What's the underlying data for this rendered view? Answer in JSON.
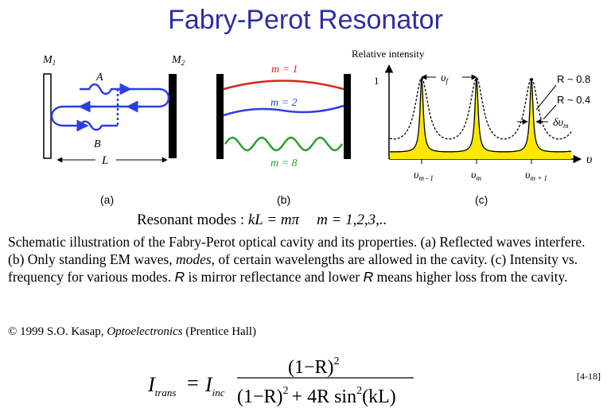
{
  "title": "Fabry-Perot Resonator",
  "panel_a": {
    "mirror1": "M",
    "mirror1_sub": "1",
    "mirror2": "M",
    "mirror2_sub": "2",
    "point_a": "A",
    "point_b": "B",
    "length": "L",
    "caption": "(a)"
  },
  "panel_b": {
    "mode1": "m = 1",
    "mode2": "m = 2",
    "mode8": "m = 8",
    "caption": "(b)",
    "colors": {
      "mode1": "#e02020",
      "mode2": "#2b3fe0",
      "mode8": "#2aa02a"
    }
  },
  "panel_c": {
    "ylabel": "Relative intensity",
    "ytick": "1",
    "nu_f_sym": "υ",
    "nu_f_sub": "f",
    "r_high": "R ~ 0.8",
    "r_low": "R ~ 0.4",
    "delta_nu_sym": "δυ",
    "delta_nu_sub": "m",
    "xaxis": "υ",
    "tick1_sym": "υ",
    "tick1_sub": "m - 1",
    "tick2_sym": "υ",
    "tick2_sub": "m",
    "tick3_sym": "υ",
    "tick3_sub": "m + 1",
    "caption": "(c)",
    "peak_color": "#ffe800"
  },
  "resonant": {
    "label": "Resonant modes : ",
    "cond": "kL = mπ",
    "values": "m = 1,2,3,.."
  },
  "description": {
    "p1": "Schematic illustration of the Fabry-Perot optical cavity and its properties. (a) Reflected waves interfere. (b) Only standing EM waves, ",
    "modes": "modes",
    "p2": ", of certain wavelengths are allowed in the cavity. (c) Intensity vs. frequency for various modes. ",
    "r1": "R",
    "p3": " is mirror reflectance and lower ",
    "r2": "R",
    "p4": " means higher loss from the cavity."
  },
  "credit": {
    "pre": "© 1999 S.O. Kasap, ",
    "book": "Optoelectronics",
    "post": " (Prentice Hall)"
  },
  "equation": {
    "lhs": "I",
    "lhs_sub": "trans",
    "eq": "=",
    "inc": "I",
    "inc_sub": "inc",
    "numerator": "(1−R)",
    "num_exp": "2",
    "den_a": "(1−R)",
    "den_a_exp": "2",
    "den_b": "+ 4R sin",
    "den_b_exp": "2",
    "den_c": "(kL)",
    "ref": "[4-18]"
  }
}
